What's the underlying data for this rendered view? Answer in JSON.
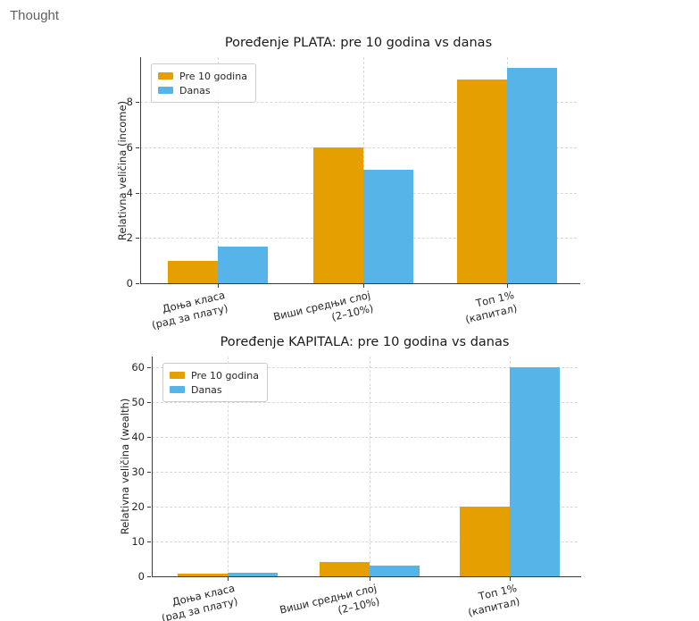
{
  "header": {
    "label": "Thought"
  },
  "colors": {
    "pre_10_godina": "#E69F00",
    "danas": "#56B4E9",
    "grid": "#d8d8d8",
    "spine": "#3c3c3c",
    "tick_text": "#262626",
    "title_text": "#1a1a1a",
    "thought_text": "#5f5f5f"
  },
  "chart_data": [
    {
      "type": "bar",
      "title": "Poređenje PLATA: pre 10 godina vs danas",
      "ylabel": "Relativna veličina (income)",
      "xlabel": "",
      "categories": [
        [
          "Доња класа",
          "(рад за плату)"
        ],
        [
          "Виши средњи слој",
          "(2–10%)"
        ],
        [
          "Топ 1%",
          "(капитал)"
        ]
      ],
      "series": [
        {
          "name": "Pre 10 godina",
          "color": "#E69F00",
          "values": [
            1,
            6,
            9
          ]
        },
        {
          "name": "Danas",
          "color": "#56B4E9",
          "values": [
            1.6,
            5,
            9.5
          ]
        }
      ],
      "yticks": [
        0,
        2,
        4,
        6,
        8
      ],
      "ylim": [
        0,
        9.975
      ],
      "grid": "dashed, both axes",
      "legend_position": "upper left"
    },
    {
      "type": "bar",
      "title": "Poređenje KAPITALA: pre 10 godina vs danas",
      "ylabel": "Relativna veličina (wealth)",
      "xlabel": "",
      "categories": [
        [
          "Доња класа",
          "(рад за плату)"
        ],
        [
          "Виши средњи слој",
          "(2–10%)"
        ],
        [
          "Топ 1%",
          "(капитал)"
        ]
      ],
      "series": [
        {
          "name": "Pre 10 godina",
          "color": "#E69F00",
          "values": [
            0.7,
            4,
            20
          ]
        },
        {
          "name": "Danas",
          "color": "#56B4E9",
          "values": [
            1,
            3,
            60
          ]
        }
      ],
      "yticks": [
        0,
        10,
        20,
        30,
        40,
        50,
        60
      ],
      "ylim": [
        0,
        63
      ],
      "grid": "dashed, both axes",
      "legend_position": "upper left"
    }
  ]
}
